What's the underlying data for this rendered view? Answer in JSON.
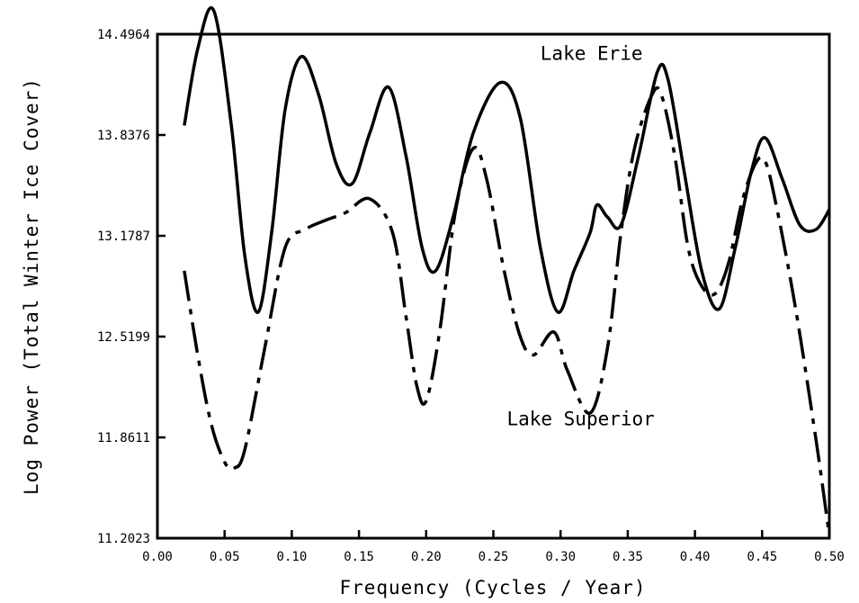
{
  "chart_data": {
    "type": "line",
    "title": "",
    "xlabel": "Frequency (Cycles / Year)",
    "ylabel": "Log Power (Total Winter Ice Cover)",
    "xlim": [
      0.0,
      0.5
    ],
    "ylim": [
      11.2023,
      14.4964
    ],
    "x_ticks": [
      "0.00",
      "0.05",
      "0.10",
      "0.15",
      "0.20",
      "0.25",
      "0.30",
      "0.35",
      "0.40",
      "0.45",
      "0.50"
    ],
    "y_ticks": [
      "11.2023",
      "11.8611",
      "12.5199",
      "13.1787",
      "13.8376",
      "14.4964"
    ],
    "grid": false,
    "series": [
      {
        "name": "Lake Erie",
        "style": "solid",
        "points": [
          [
            0.02,
            13.9
          ],
          [
            0.03,
            14.4
          ],
          [
            0.042,
            14.65
          ],
          [
            0.055,
            13.9
          ],
          [
            0.065,
            13.05
          ],
          [
            0.075,
            12.68
          ],
          [
            0.085,
            13.2
          ],
          [
            0.095,
            14.0
          ],
          [
            0.107,
            14.35
          ],
          [
            0.12,
            14.1
          ],
          [
            0.133,
            13.65
          ],
          [
            0.145,
            13.52
          ],
          [
            0.158,
            13.85
          ],
          [
            0.172,
            14.15
          ],
          [
            0.185,
            13.7
          ],
          [
            0.197,
            13.1
          ],
          [
            0.207,
            12.95
          ],
          [
            0.22,
            13.3
          ],
          [
            0.235,
            13.85
          ],
          [
            0.255,
            14.18
          ],
          [
            0.27,
            13.95
          ],
          [
            0.285,
            13.1
          ],
          [
            0.298,
            12.68
          ],
          [
            0.31,
            12.95
          ],
          [
            0.322,
            13.2
          ],
          [
            0.327,
            13.38
          ],
          [
            0.335,
            13.3
          ],
          [
            0.345,
            13.25
          ],
          [
            0.358,
            13.7
          ],
          [
            0.372,
            14.25
          ],
          [
            0.38,
            14.2
          ],
          [
            0.392,
            13.6
          ],
          [
            0.405,
            12.95
          ],
          [
            0.418,
            12.7
          ],
          [
            0.43,
            13.1
          ],
          [
            0.442,
            13.6
          ],
          [
            0.452,
            13.82
          ],
          [
            0.465,
            13.55
          ],
          [
            0.478,
            13.25
          ],
          [
            0.49,
            13.22
          ],
          [
            0.5,
            13.35
          ]
        ]
      },
      {
        "name": "Lake Superior",
        "style": "dash-dot",
        "points": [
          [
            0.02,
            12.95
          ],
          [
            0.03,
            12.4
          ],
          [
            0.04,
            11.95
          ],
          [
            0.05,
            11.7
          ],
          [
            0.057,
            11.66
          ],
          [
            0.065,
            11.78
          ],
          [
            0.08,
            12.45
          ],
          [
            0.095,
            13.1
          ],
          [
            0.11,
            13.22
          ],
          [
            0.125,
            13.28
          ],
          [
            0.14,
            13.33
          ],
          [
            0.158,
            13.42
          ],
          [
            0.175,
            13.2
          ],
          [
            0.185,
            12.65
          ],
          [
            0.193,
            12.2
          ],
          [
            0.2,
            12.1
          ],
          [
            0.21,
            12.55
          ],
          [
            0.222,
            13.35
          ],
          [
            0.235,
            13.75
          ],
          [
            0.245,
            13.55
          ],
          [
            0.258,
            12.95
          ],
          [
            0.27,
            12.52
          ],
          [
            0.28,
            12.4
          ],
          [
            0.295,
            12.55
          ],
          [
            0.305,
            12.3
          ],
          [
            0.322,
            12.02
          ],
          [
            0.335,
            12.45
          ],
          [
            0.345,
            13.2
          ],
          [
            0.355,
            13.75
          ],
          [
            0.368,
            14.1
          ],
          [
            0.375,
            14.1
          ],
          [
            0.385,
            13.7
          ],
          [
            0.395,
            13.1
          ],
          [
            0.405,
            12.85
          ],
          [
            0.415,
            12.8
          ],
          [
            0.425,
            13.0
          ],
          [
            0.435,
            13.4
          ],
          [
            0.445,
            13.65
          ],
          [
            0.452,
            13.67
          ],
          [
            0.46,
            13.4
          ],
          [
            0.475,
            12.7
          ],
          [
            0.49,
            11.85
          ],
          [
            0.5,
            11.22
          ]
        ]
      }
    ],
    "annotations": [
      {
        "text": "Lake Erie",
        "x": 0.285,
        "y": 14.33
      },
      {
        "text": "Lake Superior",
        "x": 0.26,
        "y": 11.94
      }
    ]
  }
}
